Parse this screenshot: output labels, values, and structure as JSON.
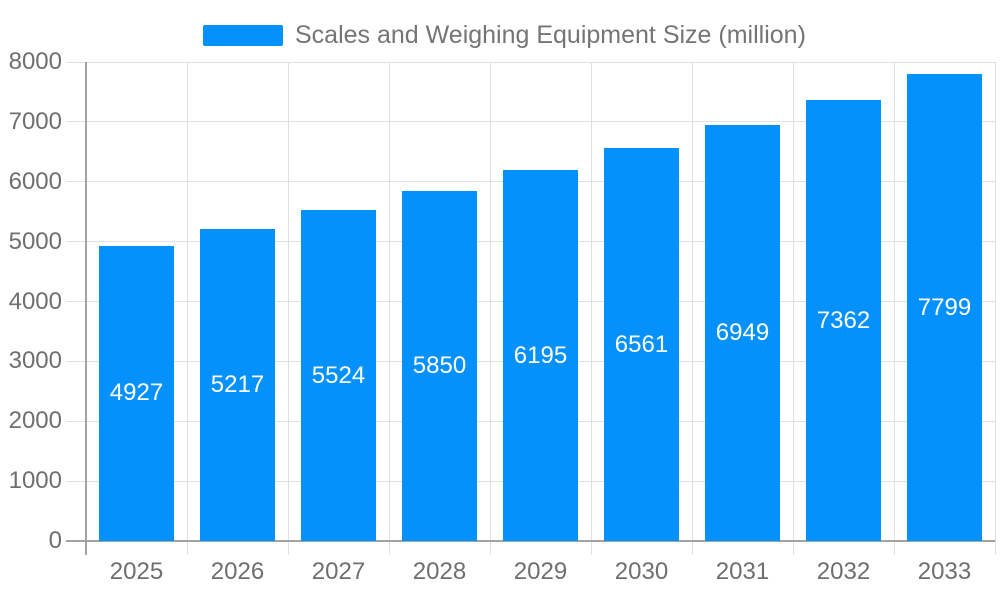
{
  "chart_data": {
    "type": "bar",
    "title": "",
    "legend": "Scales and Weighing Equipment Size (million)",
    "legend_position": "top",
    "categories": [
      "2025",
      "2026",
      "2027",
      "2028",
      "2029",
      "2030",
      "2031",
      "2032",
      "2033"
    ],
    "values": [
      4927,
      5217,
      5524,
      5850,
      6195,
      6561,
      6949,
      7362,
      7799
    ],
    "series_name": "Scales and Weighing Equipment Size (million)",
    "xlabel": "",
    "ylabel": "",
    "ylim": [
      0,
      8000
    ],
    "y_ticks": [
      0,
      1000,
      2000,
      3000,
      4000,
      5000,
      6000,
      7000,
      8000
    ],
    "grid": true,
    "data_labels": "inside-center-white",
    "colors": {
      "bar": "#0591FB",
      "label_text": "#FFFFFF",
      "axis_text": "#6F6F6F",
      "legend_text": "#757575",
      "grid_line": "#E0E0E0",
      "axis_line": "#A3A3A3",
      "background": "#FFFFFF"
    }
  }
}
